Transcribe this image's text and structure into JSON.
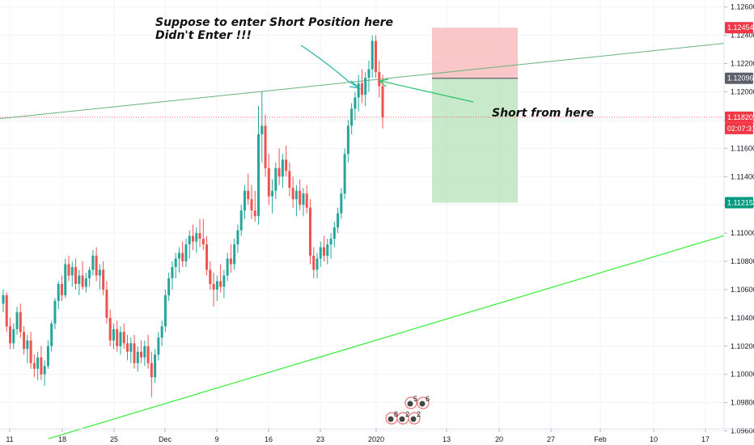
{
  "chart_data": {
    "type": "candlestick",
    "y_range": [
      1.095,
      1.1265
    ],
    "y_ticks": [
      "1.12600",
      "1.12400",
      "1.12200",
      "1.12000",
      "1.11800",
      "1.11600",
      "1.11400",
      "1.11200",
      "1.11000",
      "1.10800",
      "1.10600",
      "1.10400",
      "1.10200",
      "1.10000",
      "1.09800",
      "1.09600"
    ],
    "x_ticks": [
      "11",
      "18",
      "25",
      "Dec",
      "9",
      "16",
      "23",
      "2020",
      "13",
      "20",
      "27",
      "Feb",
      "10",
      "17"
    ],
    "price_labels": [
      {
        "text": "1.12454",
        "value": 1.12454,
        "color": "#f23645"
      },
      {
        "text": "1.12096",
        "value": 1.12096,
        "color": "#5d606b"
      },
      {
        "text": "1.11820",
        "value": 1.1182,
        "color": "#f23645"
      },
      {
        "text": "02:07:31",
        "value": 1.1182,
        "color": "#f23645"
      },
      {
        "text": "1.11215",
        "value": 1.11215,
        "color": "#089981"
      }
    ],
    "annotations": [
      {
        "text": "Suppose to enter Short Position here"
      },
      {
        "text": "Didn't Enter !!!"
      },
      {
        "text": "Short from here"
      }
    ],
    "events": [
      {
        "text": "5"
      },
      {
        "text": "6"
      },
      {
        "text": "8"
      },
      {
        "text": "2"
      },
      {
        "text": "2"
      }
    ],
    "candles": [
      [
        1.105,
        1.106,
        1.1044,
        1.1056
      ],
      [
        1.1056,
        1.1058,
        1.103,
        1.1034
      ],
      [
        1.1034,
        1.104,
        1.1018,
        1.1022
      ],
      [
        1.1022,
        1.1036,
        1.1018,
        1.1032
      ],
      [
        1.1032,
        1.1048,
        1.1028,
        1.1044
      ],
      [
        1.1044,
        1.105,
        1.1026,
        1.103
      ],
      [
        1.103,
        1.1034,
        1.1014,
        1.1018
      ],
      [
        1.1018,
        1.1028,
        1.1008,
        1.1024
      ],
      [
        1.1024,
        1.103,
        1.1004,
        1.1008
      ],
      [
        1.1008,
        1.1014,
        1.0998,
        1.1004
      ],
      [
        1.1004,
        1.1016,
        1.0996,
        1.1012
      ],
      [
        1.1012,
        1.102,
        1.0996,
        1.1
      ],
      [
        1.1,
        1.101,
        1.0992,
        1.1006
      ],
      [
        1.1006,
        1.1024,
        1.1004,
        1.102
      ],
      [
        1.102,
        1.1038,
        1.1016,
        1.1036
      ],
      [
        1.1036,
        1.1054,
        1.1032,
        1.1052
      ],
      [
        1.1052,
        1.1066,
        1.1046,
        1.1064
      ],
      [
        1.1064,
        1.107,
        1.1052,
        1.1056
      ],
      [
        1.1056,
        1.1082,
        1.1054,
        1.1078
      ],
      [
        1.1078,
        1.1084,
        1.1066,
        1.107
      ],
      [
        1.107,
        1.108,
        1.1062,
        1.1076
      ],
      [
        1.1076,
        1.1082,
        1.106,
        1.1064
      ],
      [
        1.1064,
        1.1074,
        1.1056,
        1.107
      ],
      [
        1.107,
        1.108,
        1.106,
        1.1062
      ],
      [
        1.1062,
        1.1072,
        1.1058,
        1.1068
      ],
      [
        1.1068,
        1.1076,
        1.1062,
        1.1074
      ],
      [
        1.1074,
        1.1088,
        1.107,
        1.1084
      ],
      [
        1.1084,
        1.109,
        1.1066,
        1.107
      ],
      [
        1.107,
        1.1078,
        1.106,
        1.1074
      ],
      [
        1.1074,
        1.108,
        1.1056,
        1.106
      ],
      [
        1.106,
        1.1066,
        1.1036,
        1.104
      ],
      [
        1.104,
        1.1046,
        1.102,
        1.1024
      ],
      [
        1.1024,
        1.1036,
        1.1018,
        1.1032
      ],
      [
        1.1032,
        1.1038,
        1.1016,
        1.102
      ],
      [
        1.102,
        1.1034,
        1.1014,
        1.103
      ],
      [
        1.103,
        1.1036,
        1.1018,
        1.1022
      ],
      [
        1.1022,
        1.1028,
        1.101,
        1.1016
      ],
      [
        1.1016,
        1.1026,
        1.1008,
        1.1022
      ],
      [
        1.1022,
        1.1028,
        1.1004,
        1.1008
      ],
      [
        1.1008,
        1.102,
        1.1002,
        1.1016
      ],
      [
        1.1016,
        1.1024,
        1.1008,
        1.1012
      ],
      [
        1.1012,
        1.1024,
        1.1006,
        1.102
      ],
      [
        1.102,
        1.1028,
        1.1004,
        1.1008
      ],
      [
        1.1008,
        1.1016,
        1.0984,
        1.0998
      ],
      [
        1.0998,
        1.1018,
        1.0994,
        1.1014
      ],
      [
        1.1014,
        1.103,
        1.101,
        1.1026
      ],
      [
        1.1026,
        1.1038,
        1.102,
        1.1034
      ],
      [
        1.1034,
        1.106,
        1.103,
        1.1056
      ],
      [
        1.1056,
        1.1072,
        1.1052,
        1.1068
      ],
      [
        1.1068,
        1.108,
        1.106,
        1.1076
      ],
      [
        1.1076,
        1.1086,
        1.1068,
        1.1082
      ],
      [
        1.1082,
        1.109,
        1.1072,
        1.1086
      ],
      [
        1.1086,
        1.1094,
        1.1076,
        1.108
      ],
      [
        1.108,
        1.1096,
        1.1076,
        1.1092
      ],
      [
        1.1092,
        1.1102,
        1.1082,
        1.1098
      ],
      [
        1.1098,
        1.1106,
        1.1088,
        1.1094
      ],
      [
        1.1094,
        1.1104,
        1.1086,
        1.11
      ],
      [
        1.11,
        1.111,
        1.109,
        1.1096
      ],
      [
        1.1096,
        1.111,
        1.1088,
        1.1092
      ],
      [
        1.1092,
        1.1098,
        1.107,
        1.1074
      ],
      [
        1.1074,
        1.108,
        1.106,
        1.1064
      ],
      [
        1.1064,
        1.1072,
        1.1048,
        1.106
      ],
      [
        1.106,
        1.107,
        1.1052,
        1.1066
      ],
      [
        1.1066,
        1.1078,
        1.1058,
        1.1062
      ],
      [
        1.1062,
        1.1074,
        1.1054,
        1.107
      ],
      [
        1.107,
        1.1086,
        1.1066,
        1.1082
      ],
      [
        1.1082,
        1.1092,
        1.1072,
        1.1078
      ],
      [
        1.1078,
        1.1096,
        1.1074,
        1.1092
      ],
      [
        1.1092,
        1.1106,
        1.1086,
        1.1102
      ],
      [
        1.1102,
        1.112,
        1.1098,
        1.1116
      ],
      [
        1.1116,
        1.1134,
        1.111,
        1.113
      ],
      [
        1.113,
        1.1142,
        1.112,
        1.1124
      ],
      [
        1.1124,
        1.1134,
        1.111,
        1.1116
      ],
      [
        1.1116,
        1.113,
        1.1108,
        1.1112
      ],
      [
        1.1112,
        1.119,
        1.1106,
        1.117
      ],
      [
        1.117,
        1.12,
        1.115,
        1.1176
      ],
      [
        1.1176,
        1.1184,
        1.114,
        1.1146
      ],
      [
        1.1146,
        1.1156,
        1.112,
        1.1126
      ],
      [
        1.1126,
        1.1138,
        1.1114,
        1.113
      ],
      [
        1.113,
        1.115,
        1.1124,
        1.1146
      ],
      [
        1.1146,
        1.116,
        1.1134,
        1.114
      ],
      [
        1.114,
        1.1156,
        1.1132,
        1.1152
      ],
      [
        1.1152,
        1.1162,
        1.114,
        1.1144
      ],
      [
        1.1144,
        1.115,
        1.1126,
        1.1132
      ],
      [
        1.1132,
        1.114,
        1.1118,
        1.1124
      ],
      [
        1.1124,
        1.1134,
        1.1112,
        1.113
      ],
      [
        1.113,
        1.1138,
        1.1116,
        1.112
      ],
      [
        1.112,
        1.1132,
        1.1112,
        1.1128
      ],
      [
        1.1128,
        1.1134,
        1.1114,
        1.1118
      ],
      [
        1.1118,
        1.1124,
        1.1078,
        1.1084
      ],
      [
        1.1084,
        1.109,
        1.1068,
        1.1074
      ],
      [
        1.1074,
        1.1086,
        1.1068,
        1.1082
      ],
      [
        1.1082,
        1.1094,
        1.1076,
        1.109
      ],
      [
        1.109,
        1.1098,
        1.108,
        1.1084
      ],
      [
        1.1084,
        1.1096,
        1.1078,
        1.1092
      ],
      [
        1.1092,
        1.11,
        1.1082,
        1.1096
      ],
      [
        1.1096,
        1.1108,
        1.109,
        1.1104
      ],
      [
        1.1104,
        1.1118,
        1.11,
        1.1114
      ],
      [
        1.1114,
        1.1132,
        1.111,
        1.1128
      ],
      [
        1.1128,
        1.116,
        1.1124,
        1.1156
      ],
      [
        1.1156,
        1.118,
        1.115,
        1.1176
      ],
      [
        1.1176,
        1.1192,
        1.117,
        1.1188
      ],
      [
        1.1188,
        1.12,
        1.118,
        1.1196
      ],
      [
        1.1196,
        1.1212,
        1.1186,
        1.1206
      ],
      [
        1.1206,
        1.1216,
        1.1192,
        1.1198
      ],
      [
        1.1198,
        1.1214,
        1.119,
        1.121
      ],
      [
        1.121,
        1.1222,
        1.12,
        1.1216
      ],
      [
        1.1216,
        1.124,
        1.121,
        1.1236
      ],
      [
        1.1236,
        1.124,
        1.121,
        1.1214
      ],
      [
        1.1214,
        1.1222,
        1.1196,
        1.1204
      ],
      [
        1.1204,
        1.1212,
        1.1174,
        1.1182
      ]
    ]
  }
}
